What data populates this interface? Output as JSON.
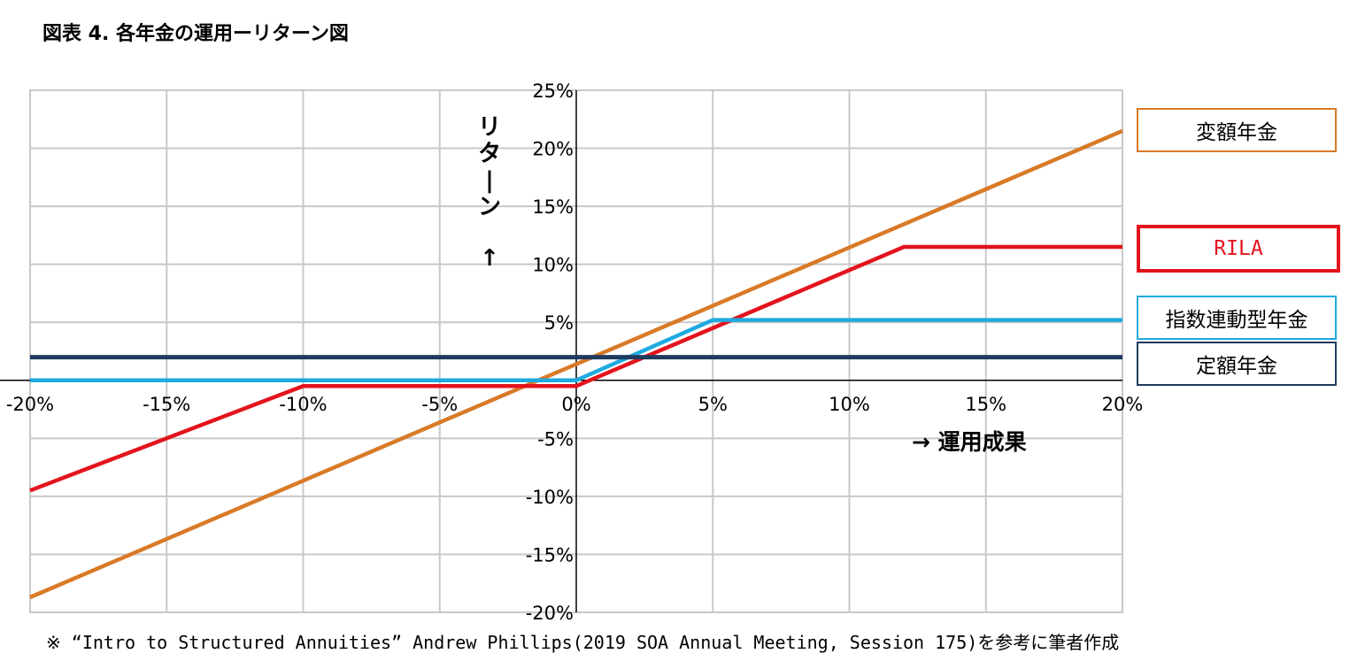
{
  "title": "図表 4.  各年金の運用ーリターン図",
  "footnote": "※  “Intro to Structured Annuities” Andrew Phillips(2019 SOA Annual Meeting, Session 175)を参考に筆者作成",
  "chart_data": {
    "type": "line",
    "xlabel": "→   運用成果",
    "ylabel": "リターン",
    "ylabel_arrow": "↑",
    "xlim": [
      -20,
      20
    ],
    "ylim": [
      -20,
      25
    ],
    "x_ticks": [
      -20,
      -15,
      -10,
      -5,
      0,
      5,
      10,
      15,
      20
    ],
    "x_tick_labels": [
      "-20%",
      "-15%",
      "-10%",
      "-5%",
      "0%",
      "5%",
      "10%",
      "15%",
      "20%"
    ],
    "y_ticks": [
      -20,
      -15,
      -10,
      -5,
      5,
      10,
      15,
      20,
      25
    ],
    "y_tick_labels": [
      "-20%",
      "-15%",
      "-10%",
      "-5%",
      "5%",
      "10%",
      "15%",
      "20%",
      "25%"
    ],
    "grid": true,
    "legend": "right",
    "series": [
      {
        "name": "変額年金",
        "color": "#d97a28",
        "width": 4.5,
        "points": [
          [
            -20,
            -18.7
          ],
          [
            20,
            21.5
          ]
        ]
      },
      {
        "name": "RILA",
        "color": "#e3141d",
        "width": 4.5,
        "points": [
          [
            -20,
            -9.5
          ],
          [
            -10,
            -0.5
          ],
          [
            0,
            -0.5
          ],
          [
            12,
            11.5
          ],
          [
            20,
            11.5
          ]
        ]
      },
      {
        "name": "指数連動型年金",
        "color": "#1eaae0",
        "width": 4.5,
        "points": [
          [
            -20,
            0
          ],
          [
            0,
            0
          ],
          [
            5,
            5.2
          ],
          [
            20,
            5.2
          ]
        ]
      },
      {
        "name": "定額年金",
        "color": "#1f3a5f",
        "width": 5,
        "points": [
          [
            -20,
            2
          ],
          [
            20,
            2
          ]
        ]
      }
    ],
    "legend_entries": [
      {
        "label": "変額年金",
        "border": "#d97a28",
        "text_color": "#000000"
      },
      {
        "label": "RILA",
        "border": "#e3141d",
        "text_color": "#e3141d"
      },
      {
        "label": "指数連動型年金",
        "border": "#1eaae0",
        "text_color": "#000000"
      },
      {
        "label": "定額年金",
        "border": "#1f3a5f",
        "text_color": "#000000"
      }
    ]
  }
}
